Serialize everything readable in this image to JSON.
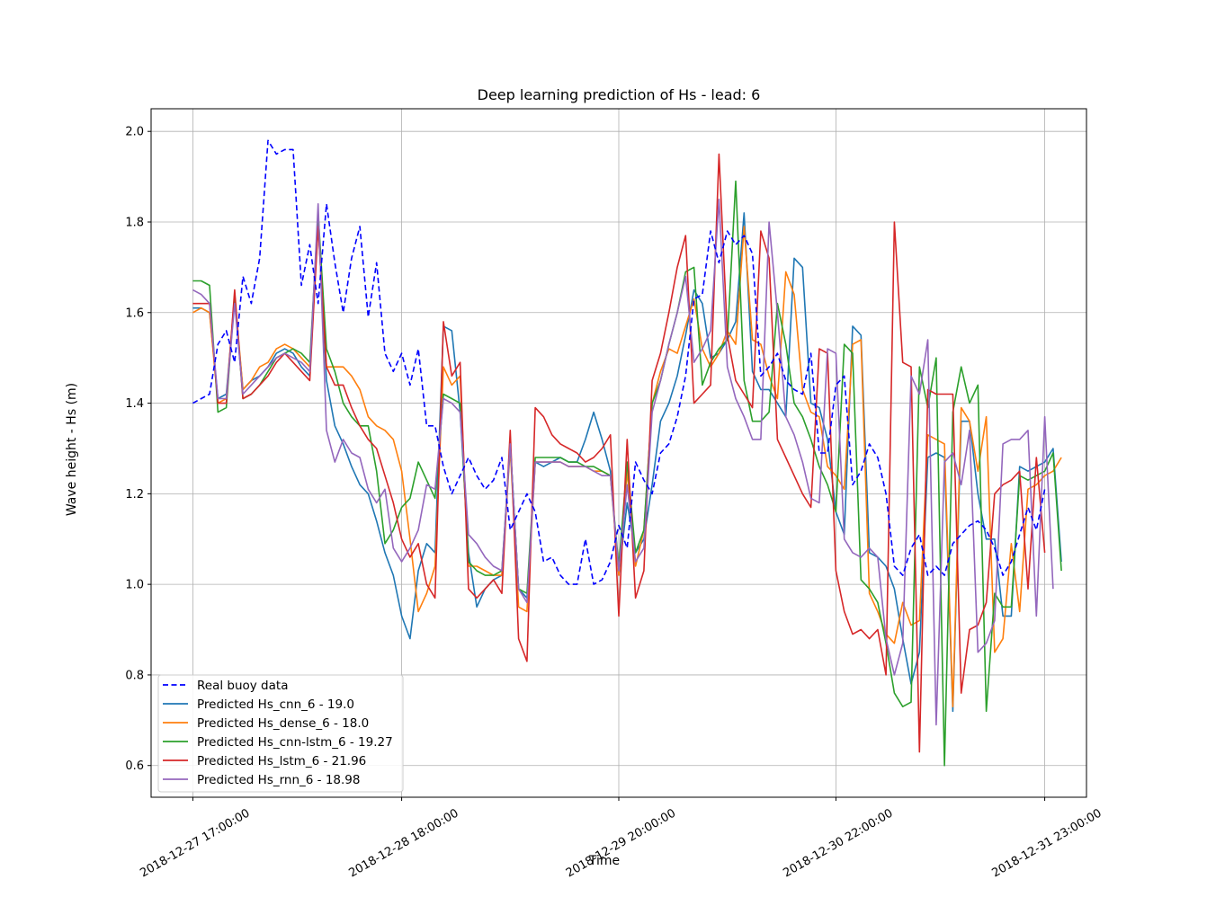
{
  "chart_data": {
    "type": "line",
    "title": "Deep learning prediction of Hs - lead: 6",
    "xlabel": "Time",
    "ylabel": "Wave height - Hs (m)",
    "x_tick_labels": [
      "2018-12-27 17:00:00",
      "2018-12-28 18:00:00",
      "2018-12-29 20:00:00",
      "2018-12-30 22:00:00",
      "2018-12-31 23:00:00"
    ],
    "x_tick_index": [
      0,
      25,
      51,
      77,
      102
    ],
    "xlim_index": [
      -5,
      107
    ],
    "ylim": [
      0.53,
      2.05
    ],
    "y_ticks": [
      0.6,
      0.8,
      1.0,
      1.2,
      1.4,
      1.6,
      1.8,
      2.0
    ],
    "y_tick_labels": [
      "0.6",
      "0.8",
      "1.0",
      "1.2",
      "1.4",
      "1.6",
      "1.8",
      "2.0"
    ],
    "grid": true,
    "legend_position": "lower-left",
    "series": [
      {
        "name": "Real buoy data",
        "color": "#0000ff",
        "dashed": true,
        "values": [
          1.4,
          1.41,
          1.42,
          1.53,
          1.56,
          1.49,
          1.68,
          1.62,
          1.72,
          1.98,
          1.95,
          1.96,
          1.96,
          1.66,
          1.75,
          1.62,
          1.84,
          1.71,
          1.6,
          1.72,
          1.79,
          1.59,
          1.71,
          1.51,
          1.47,
          1.51,
          1.44,
          1.52,
          1.35,
          1.35,
          1.26,
          1.2,
          1.24,
          1.28,
          1.24,
          1.21,
          1.23,
          1.28,
          1.12,
          1.16,
          1.2,
          1.16,
          1.05,
          1.06,
          1.02,
          1.0,
          1.0,
          1.1,
          1.0,
          1.01,
          1.05,
          1.13,
          1.08,
          1.27,
          1.23,
          1.2,
          1.29,
          1.31,
          1.37,
          1.46,
          1.63,
          1.64,
          1.78,
          1.71,
          1.78,
          1.75,
          1.77,
          1.73,
          1.46,
          1.48,
          1.51,
          1.45,
          1.43,
          1.42,
          1.51,
          1.29,
          1.29,
          1.44,
          1.46,
          1.22,
          1.25,
          1.31,
          1.28,
          1.2,
          1.04,
          1.02,
          1.08,
          1.11,
          1.02,
          1.04,
          1.02,
          1.09,
          1.11,
          1.13,
          1.14,
          1.12,
          1.08,
          1.02,
          1.05,
          1.11,
          1.17,
          1.12,
          1.21
        ]
      },
      {
        "name": "Predicted Hs_cnn_6 - 19.0",
        "color": "#1f77b4",
        "dashed": false,
        "values": [
          1.61,
          1.61,
          1.6,
          1.41,
          1.42,
          1.63,
          1.43,
          1.45,
          1.46,
          1.48,
          1.51,
          1.52,
          1.51,
          1.48,
          1.46,
          1.8,
          1.45,
          1.35,
          1.31,
          1.26,
          1.22,
          1.2,
          1.14,
          1.07,
          1.02,
          0.93,
          0.88,
          1.03,
          1.09,
          1.07,
          1.57,
          1.56,
          1.38,
          1.07,
          0.95,
          0.99,
          1.01,
          1.02,
          1.31,
          0.99,
          0.97,
          1.27,
          1.26,
          1.27,
          1.28,
          1.27,
          1.27,
          1.32,
          1.38,
          1.32,
          1.25,
          1.02,
          1.18,
          1.07,
          1.1,
          1.22,
          1.36,
          1.4,
          1.46,
          1.55,
          1.65,
          1.62,
          1.5,
          1.51,
          1.54,
          1.58,
          1.82,
          1.47,
          1.43,
          1.43,
          1.4,
          1.37,
          1.72,
          1.7,
          1.4,
          1.39,
          1.32,
          1.16,
          1.11,
          1.57,
          1.55,
          1.07,
          1.06,
          1.04,
          0.99,
          0.88,
          0.78,
          0.85,
          1.28,
          1.29,
          1.28,
          0.72,
          1.36,
          1.36,
          1.2,
          1.1,
          1.1,
          0.93,
          0.93,
          1.26,
          1.25,
          1.26,
          1.27,
          1.3,
          1.05
        ]
      },
      {
        "name": "Predicted Hs_dense_6 - 18.0",
        "color": "#ff7f0e",
        "dashed": false,
        "values": [
          1.6,
          1.61,
          1.6,
          1.4,
          1.41,
          1.64,
          1.43,
          1.45,
          1.48,
          1.49,
          1.52,
          1.53,
          1.52,
          1.5,
          1.48,
          1.8,
          1.48,
          1.48,
          1.48,
          1.46,
          1.43,
          1.37,
          1.35,
          1.34,
          1.32,
          1.25,
          1.1,
          0.94,
          0.98,
          1.04,
          1.48,
          1.44,
          1.46,
          1.04,
          1.04,
          1.03,
          1.02,
          1.02,
          1.3,
          0.95,
          0.94,
          1.27,
          1.27,
          1.27,
          1.27,
          1.26,
          1.26,
          1.26,
          1.25,
          1.25,
          1.24,
          1.02,
          1.25,
          1.04,
          1.12,
          1.4,
          1.47,
          1.52,
          1.51,
          1.57,
          1.63,
          1.52,
          1.48,
          1.51,
          1.56,
          1.53,
          1.79,
          1.54,
          1.53,
          1.46,
          1.41,
          1.69,
          1.64,
          1.43,
          1.38,
          1.37,
          1.26,
          1.24,
          1.21,
          1.53,
          1.54,
          0.98,
          0.94,
          0.89,
          0.87,
          0.96,
          0.91,
          0.92,
          1.33,
          1.32,
          1.31,
          0.73,
          1.39,
          1.36,
          1.25,
          1.37,
          0.85,
          0.88,
          1.09,
          0.94,
          1.21,
          1.22,
          1.24,
          1.25,
          1.28
        ]
      },
      {
        "name": "Predicted Hs_cnn-lstm_6 - 19.27",
        "color": "#2ca02c",
        "dashed": false,
        "values": [
          1.67,
          1.67,
          1.66,
          1.38,
          1.39,
          1.64,
          1.41,
          1.42,
          1.44,
          1.47,
          1.5,
          1.51,
          1.52,
          1.51,
          1.49,
          1.82,
          1.52,
          1.47,
          1.4,
          1.37,
          1.35,
          1.35,
          1.25,
          1.09,
          1.12,
          1.17,
          1.19,
          1.27,
          1.23,
          1.19,
          1.42,
          1.41,
          1.4,
          1.05,
          1.03,
          1.02,
          1.02,
          1.03,
          1.31,
          0.99,
          0.98,
          1.28,
          1.28,
          1.28,
          1.28,
          1.27,
          1.27,
          1.26,
          1.26,
          1.25,
          1.24,
          1.04,
          1.27,
          1.07,
          1.12,
          1.4,
          1.45,
          1.53,
          1.6,
          1.69,
          1.7,
          1.44,
          1.49,
          1.52,
          1.54,
          1.89,
          1.45,
          1.36,
          1.36,
          1.38,
          1.62,
          1.53,
          1.4,
          1.37,
          1.32,
          1.26,
          1.22,
          1.16,
          1.53,
          1.51,
          1.01,
          0.99,
          0.96,
          0.87,
          0.76,
          0.73,
          0.74,
          1.48,
          1.39,
          1.5,
          0.6,
          1.38,
          1.48,
          1.4,
          1.44,
          0.72,
          0.98,
          0.95,
          0.95,
          1.24,
          1.23,
          1.24,
          1.25,
          1.29,
          1.03
        ]
      },
      {
        "name": "Predicted Hs_lstm_6 - 21.96",
        "color": "#d62728",
        "dashed": false,
        "values": [
          1.62,
          1.62,
          1.62,
          1.4,
          1.4,
          1.65,
          1.41,
          1.42,
          1.44,
          1.46,
          1.49,
          1.51,
          1.49,
          1.47,
          1.45,
          1.79,
          1.48,
          1.44,
          1.44,
          1.39,
          1.35,
          1.32,
          1.3,
          1.24,
          1.18,
          1.1,
          1.06,
          1.09,
          1.0,
          0.97,
          1.58,
          1.46,
          1.49,
          0.99,
          0.97,
          0.99,
          1.01,
          0.98,
          1.34,
          0.88,
          0.83,
          1.39,
          1.37,
          1.33,
          1.31,
          1.3,
          1.29,
          1.27,
          1.28,
          1.3,
          1.33,
          0.93,
          1.32,
          0.97,
          1.03,
          1.45,
          1.51,
          1.6,
          1.7,
          1.77,
          1.4,
          1.42,
          1.44,
          1.95,
          1.55,
          1.45,
          1.42,
          1.39,
          1.78,
          1.72,
          1.32,
          1.28,
          1.24,
          1.2,
          1.17,
          1.52,
          1.51,
          1.03,
          0.94,
          0.89,
          0.9,
          0.88,
          0.9,
          0.8,
          1.8,
          1.49,
          1.48,
          0.63,
          1.43,
          1.42,
          1.42,
          1.42,
          0.76,
          0.9,
          0.91,
          0.96,
          1.2,
          1.22,
          1.23,
          1.25,
          0.99,
          1.28,
          1.07
        ]
      },
      {
        "name": "Predicted Hs_rnn_6 - 18.98",
        "color": "#9467bd",
        "dashed": false,
        "values": [
          1.65,
          1.64,
          1.62,
          1.41,
          1.41,
          1.62,
          1.42,
          1.44,
          1.46,
          1.48,
          1.5,
          1.51,
          1.5,
          1.49,
          1.47,
          1.84,
          1.34,
          1.27,
          1.32,
          1.29,
          1.28,
          1.21,
          1.18,
          1.21,
          1.08,
          1.05,
          1.08,
          1.12,
          1.22,
          1.21,
          1.41,
          1.4,
          1.38,
          1.11,
          1.09,
          1.06,
          1.04,
          1.03,
          1.31,
          0.99,
          0.96,
          1.27,
          1.27,
          1.27,
          1.27,
          1.26,
          1.26,
          1.26,
          1.25,
          1.24,
          1.24,
          1.03,
          1.22,
          1.05,
          1.08,
          1.38,
          1.45,
          1.53,
          1.6,
          1.68,
          1.49,
          1.52,
          1.56,
          1.85,
          1.48,
          1.41,
          1.37,
          1.32,
          1.32,
          1.8,
          1.6,
          1.37,
          1.33,
          1.27,
          1.19,
          1.18,
          1.52,
          1.51,
          1.1,
          1.07,
          1.06,
          1.08,
          1.06,
          0.88,
          0.8,
          0.87,
          1.46,
          1.42,
          1.54,
          0.69,
          1.27,
          1.29,
          1.22,
          1.34,
          0.85,
          0.87,
          0.92,
          1.31,
          1.32,
          1.32,
          1.34,
          0.93,
          1.37,
          0.99
        ]
      }
    ]
  }
}
